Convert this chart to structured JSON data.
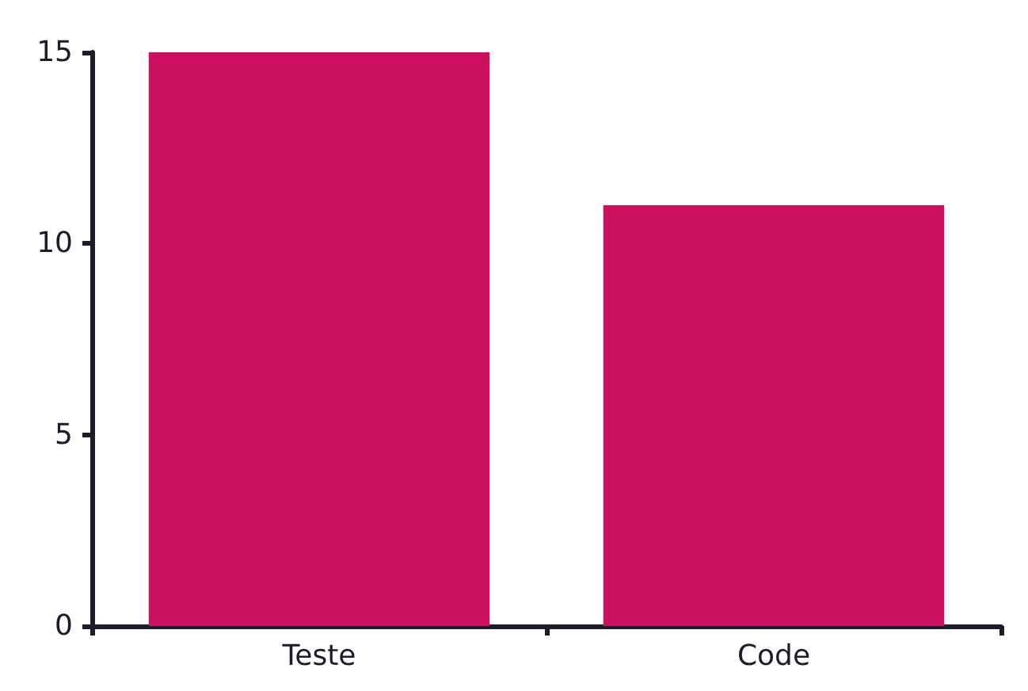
{
  "chart_data": {
    "type": "bar",
    "categories": [
      "Teste",
      "Code"
    ],
    "values": [
      15,
      11
    ],
    "color": "#cc1060",
    "ylim": [
      0,
      15
    ],
    "yticks": [
      0,
      5,
      10,
      15
    ],
    "grid": false
  }
}
